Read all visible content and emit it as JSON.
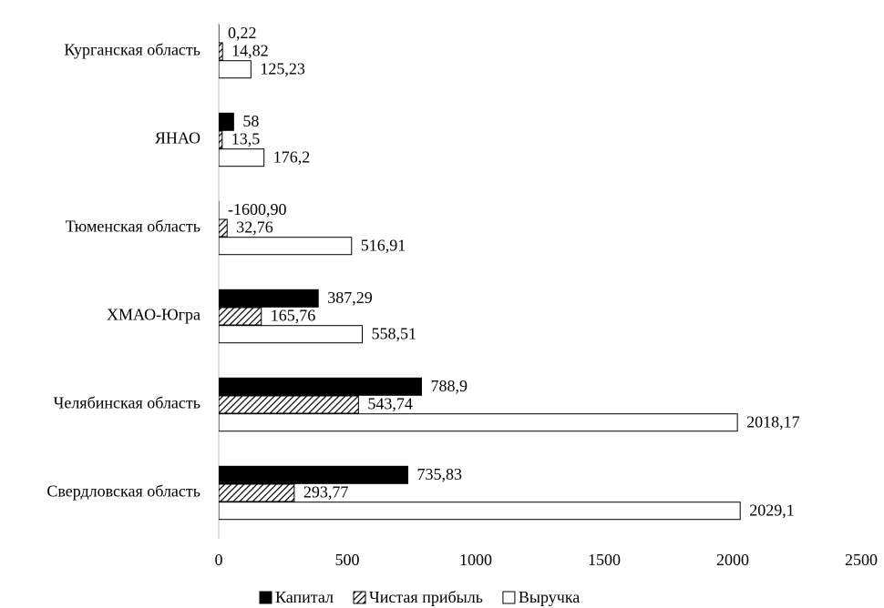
{
  "chart_data": {
    "type": "bar",
    "orientation": "horizontal",
    "categories": [
      "Курганская область",
      "ЯНАО",
      "Тюменская область",
      "ХМАО-Югра",
      "Челябинская область",
      "Свердловская область"
    ],
    "series": [
      {
        "name": "Капитал",
        "color": "#000000",
        "values": [
          0.22,
          58,
          -1600.9,
          387.29,
          788.9,
          735.83
        ],
        "value_labels": [
          "0,22",
          "58",
          "-1600,90",
          "387,29",
          "788,9",
          "735,83"
        ]
      },
      {
        "name": "Чистая прибыль",
        "color": "hatch",
        "values": [
          14.82,
          13.5,
          32.76,
          165.76,
          543.74,
          293.77
        ],
        "value_labels": [
          "14,82",
          "13,5",
          "32,76",
          "165,76",
          "543,74",
          "293,77"
        ]
      },
      {
        "name": "Выручка",
        "color": "#ffffff",
        "values": [
          125.23,
          176.2,
          516.91,
          558.51,
          2018.17,
          2029.1
        ],
        "value_labels": [
          "125,23",
          "176,2",
          "516,91",
          "558,51",
          "2018,17",
          "2029,1"
        ]
      }
    ],
    "xlim": [
      0,
      2500
    ],
    "xticks": [
      0,
      500,
      1000,
      1500,
      2000,
      2500
    ],
    "grid": false,
    "legend": "bottom"
  }
}
